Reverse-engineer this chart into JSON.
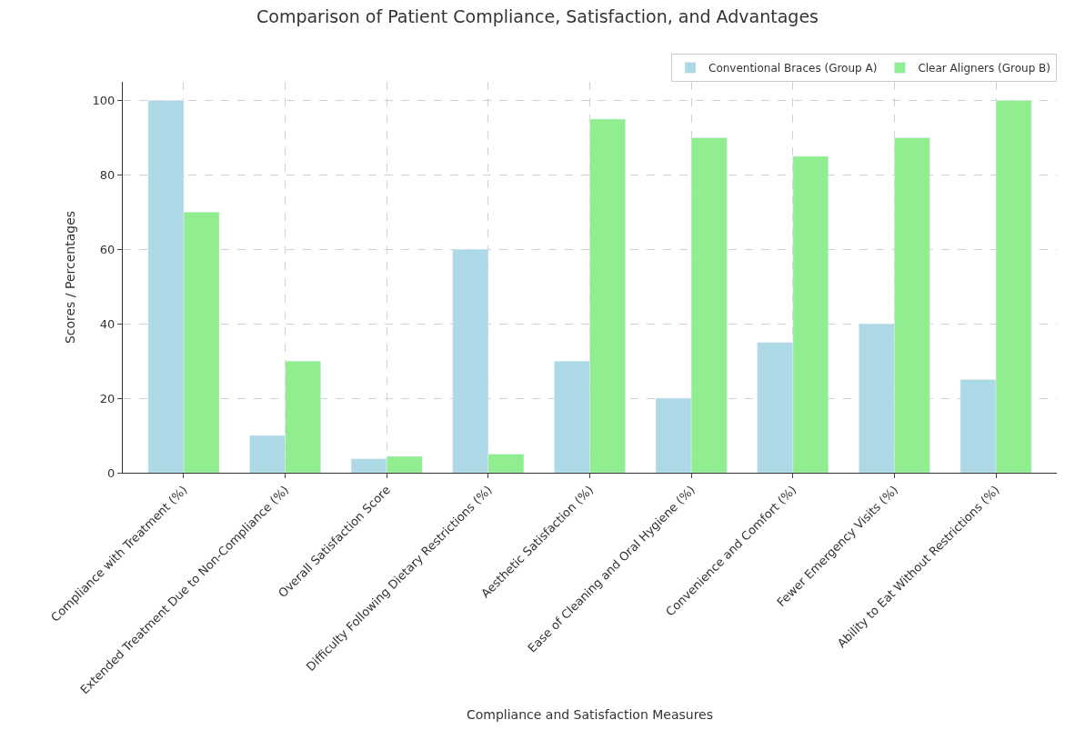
{
  "chart_data": {
    "type": "bar",
    "title": "Comparison of Patient Compliance, Satisfaction, and Advantages",
    "xlabel": "Compliance and Satisfaction Measures",
    "ylabel": "Scores / Percentages",
    "categories": [
      "Compliance with Treatment (%)",
      "Extended Treatment Due to Non-Compliance (%)",
      "Overall Satisfaction Score",
      "Difficulty Following Dietary Restrictions (%)",
      "Aesthetic Satisfaction (%)",
      "Ease of Cleaning and Oral Hygiene (%)",
      "Convenience and Comfort (%)",
      "Fewer Emergency Visits (%)",
      "Ability to Eat Without Restrictions (%)"
    ],
    "series": [
      {
        "name": "Conventional Braces (Group A)",
        "color": "#add8e6",
        "values": [
          100,
          10,
          3.7,
          60,
          30,
          20,
          35,
          40,
          25
        ]
      },
      {
        "name": "Clear Aligners (Group B)",
        "color": "#90ee90",
        "values": [
          70,
          30,
          4.4,
          5,
          95,
          90,
          85,
          90,
          100
        ]
      }
    ],
    "ylim": [
      0,
      105
    ],
    "yticks": [
      0,
      20,
      40,
      60,
      80,
      100
    ],
    "grid": true,
    "legend": "top right"
  }
}
